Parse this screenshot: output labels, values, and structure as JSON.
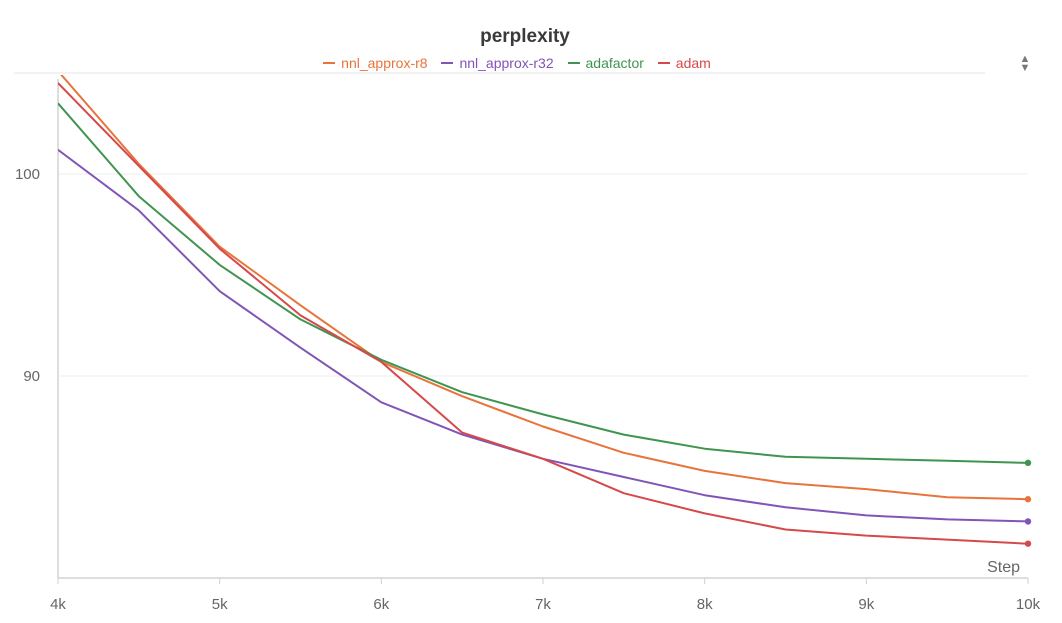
{
  "chart_data": {
    "type": "line",
    "title": "perplexity",
    "xlabel": "Step",
    "ylabel": "",
    "x_ticks": [
      4000,
      5000,
      6000,
      7000,
      8000,
      9000,
      10000
    ],
    "x_tick_labels": [
      "4k",
      "5k",
      "6k",
      "7k",
      "8k",
      "9k",
      "10k"
    ],
    "y_ticks": [
      90,
      100
    ],
    "y_tick_labels": [
      "90",
      "100"
    ],
    "xlim": [
      4000,
      10000
    ],
    "ylim": [
      80,
      105
    ],
    "grid": true,
    "legend_position": "top-center",
    "x": [
      4000,
      4500,
      5000,
      5500,
      6000,
      6500,
      7000,
      7500,
      8000,
      8500,
      9000,
      9500,
      10000
    ],
    "series": [
      {
        "name": "nnl_approx-r8",
        "color": "#e8743b",
        "values": [
          105.1,
          100.5,
          96.4,
          93.5,
          90.7,
          89.0,
          87.5,
          86.2,
          85.3,
          84.7,
          84.4,
          84.0,
          83.9
        ]
      },
      {
        "name": "nnl_approx-r32",
        "color": "#8155b8",
        "values": [
          101.2,
          98.2,
          94.2,
          91.4,
          88.7,
          87.1,
          85.9,
          85.0,
          84.1,
          83.5,
          83.1,
          82.9,
          82.8
        ]
      },
      {
        "name": "adafactor",
        "color": "#3f944f",
        "values": [
          103.5,
          98.9,
          95.5,
          92.8,
          90.8,
          89.2,
          88.1,
          87.1,
          86.4,
          86.0,
          85.9,
          85.8,
          85.7
        ]
      },
      {
        "name": "adam",
        "color": "#d6494a",
        "values": [
          104.5,
          100.4,
          96.3,
          93.0,
          90.7,
          87.2,
          85.9,
          84.2,
          83.2,
          82.4,
          82.1,
          81.9,
          81.7
        ]
      }
    ]
  },
  "settings_icon": "sort-arrows-icon"
}
